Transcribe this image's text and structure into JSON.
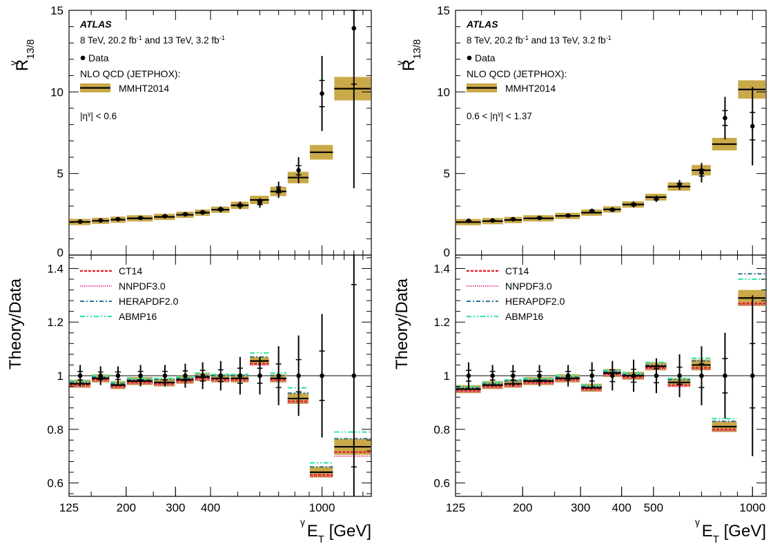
{
  "chart_data": [
    {
      "type": "scatter",
      "panel": "left",
      "ylabel_top": "R",
      "ylabel_top_sup": "γ",
      "ylabel_top_sub": "13/8",
      "ylabel_bottom": "Theory/Data",
      "xlabel": "E",
      "xlabel_sup": "γ",
      "xlabel_sub": "T",
      "xlabel_unit": "[GeV]",
      "x_scale": "log",
      "xlim": [
        125,
        1500
      ],
      "ylim_top": [
        0,
        15
      ],
      "ylim_bottom": [
        0.55,
        1.45
      ],
      "x_ticks": [
        125,
        200,
        300,
        400,
        1000
      ],
      "y_ticks_top": [
        0,
        5,
        10,
        15
      ],
      "y_ticks_bottom": [
        0.6,
        0.8,
        1,
        1.2,
        1.4
      ],
      "annotations": {
        "experiment": "ATLAS",
        "lumi_a": "8 TeV, 20.2 fb",
        "lumi_a_sup": "-1",
        "lumi_b": " and 13 TeV, 3.2 fb",
        "lumi_b_sup": "-1",
        "region_pre": "|η",
        "region_sup": "γ",
        "region_post": "| < 0.6"
      },
      "legend_top": {
        "data": "Data",
        "nlo": "NLO QCD (JETPHOX):",
        "pdf": "MMHT2014"
      },
      "legend_bottom": [
        "CT14",
        "NNPDF3.0",
        "HERAPDF2.0",
        "ABMP16"
      ],
      "bins": [
        [
          125,
          150
        ],
        [
          150,
          175
        ],
        [
          175,
          200
        ],
        [
          200,
          250
        ],
        [
          250,
          300
        ],
        [
          300,
          350
        ],
        [
          350,
          400
        ],
        [
          400,
          470
        ],
        [
          470,
          550
        ],
        [
          550,
          650
        ],
        [
          650,
          750
        ],
        [
          750,
          900
        ],
        [
          900,
          1100
        ],
        [
          1100,
          1500
        ]
      ],
      "data_x": [
        137,
        162,
        187,
        225,
        275,
        325,
        375,
        435,
        510,
        600,
        700,
        825,
        1000,
        1300
      ],
      "data_y": [
        2.05,
        2.12,
        2.2,
        2.28,
        2.38,
        2.5,
        2.62,
        2.8,
        3.05,
        3.2,
        4.0,
        5.2,
        9.9,
        13.9
      ],
      "data_err": [
        0.06,
        0.07,
        0.08,
        0.09,
        0.11,
        0.13,
        0.15,
        0.18,
        0.23,
        0.3,
        0.5,
        0.8,
        2.3,
        9.8
      ],
      "theory_mmht": [
        2.03,
        2.1,
        2.17,
        2.25,
        2.34,
        2.47,
        2.6,
        2.78,
        3.05,
        3.38,
        3.9,
        4.75,
        6.3,
        10.2
      ],
      "theory_band": [
        0.06,
        0.06,
        0.07,
        0.08,
        0.08,
        0.09,
        0.1,
        0.12,
        0.14,
        0.16,
        0.18,
        0.22,
        0.28,
        0.45
      ],
      "ratio_mmht": [
        0.97,
        0.99,
        0.965,
        0.98,
        0.975,
        0.985,
        0.995,
        0.99,
        0.99,
        1.055,
        0.99,
        0.915,
        0.64,
        0.735
      ],
      "ratio_band": [
        0.015,
        0.015,
        0.015,
        0.015,
        0.015,
        0.015,
        0.015,
        0.015,
        0.015,
        0.015,
        0.015,
        0.02,
        0.02,
        0.03
      ],
      "ratio_ct14": [
        0.965,
        0.985,
        0.96,
        0.975,
        0.97,
        0.98,
        0.99,
        0.985,
        0.985,
        1.045,
        0.985,
        0.905,
        0.63,
        0.715
      ],
      "ratio_nnpdf": [
        0.96,
        0.98,
        0.955,
        0.97,
        0.965,
        0.975,
        0.985,
        0.98,
        0.98,
        1.04,
        0.98,
        0.9,
        0.625,
        0.7
      ],
      "ratio_hera": [
        0.975,
        0.995,
        0.97,
        0.985,
        0.985,
        0.99,
        1.0,
        1.0,
        1.0,
        1.07,
        1.0,
        0.935,
        0.66,
        0.765
      ],
      "ratio_abmp": [
        0.98,
        1.0,
        0.975,
        0.99,
        0.99,
        0.995,
        1.01,
        1.005,
        1.005,
        1.085,
        1.01,
        0.955,
        0.675,
        0.79
      ],
      "ratio_data_err": [
        0.04,
        0.035,
        0.035,
        0.04,
        0.04,
        0.045,
        0.05,
        0.055,
        0.07,
        0.07,
        0.11,
        0.15,
        0.23,
        0.85
      ]
    },
    {
      "type": "scatter",
      "panel": "right",
      "ylabel_top": "R",
      "ylabel_top_sup": "γ",
      "ylabel_top_sub": "13/8",
      "ylabel_bottom": "Theory/Data",
      "xlabel": "E",
      "xlabel_sup": "γ",
      "xlabel_sub": "T",
      "xlabel_unit": "[GeV]",
      "x_scale": "log",
      "xlim": [
        125,
        1100
      ],
      "ylim_top": [
        0,
        15
      ],
      "ylim_bottom": [
        0.55,
        1.45
      ],
      "x_ticks": [
        125,
        200,
        300,
        400,
        500,
        1000
      ],
      "y_ticks_top": [
        0,
        5,
        10,
        15
      ],
      "y_ticks_bottom": [
        0.6,
        0.8,
        1,
        1.2,
        1.4
      ],
      "annotations": {
        "experiment": "ATLAS",
        "lumi_a": "8 TeV, 20.2 fb",
        "lumi_a_sup": "-1",
        "lumi_b": " and 13 TeV, 3.2 fb",
        "lumi_b_sup": "-1",
        "region_pre": "0.6 < |η",
        "region_sup": "γ",
        "region_post": "| < 1.37"
      },
      "legend_top": {
        "data": "Data",
        "nlo": "NLO QCD (JETPHOX):",
        "pdf": "MMHT2014"
      },
      "legend_bottom": [
        "CT14",
        "NNPDF3.0",
        "HERAPDF2.0",
        "ABMP16"
      ],
      "bins": [
        [
          125,
          150
        ],
        [
          150,
          175
        ],
        [
          175,
          200
        ],
        [
          200,
          250
        ],
        [
          250,
          300
        ],
        [
          300,
          350
        ],
        [
          350,
          400
        ],
        [
          400,
          470
        ],
        [
          470,
          550
        ],
        [
          550,
          650
        ],
        [
          650,
          750
        ],
        [
          750,
          900
        ],
        [
          900,
          1100
        ]
      ],
      "data_x": [
        137,
        162,
        187,
        225,
        275,
        325,
        375,
        435,
        510,
        600,
        700,
        825,
        1000
      ],
      "data_y": [
        2.1,
        2.12,
        2.2,
        2.28,
        2.42,
        2.7,
        2.78,
        3.1,
        3.45,
        4.3,
        5.05,
        8.4,
        7.9
      ],
      "data_err": [
        0.06,
        0.07,
        0.08,
        0.1,
        0.12,
        0.14,
        0.15,
        0.18,
        0.2,
        0.3,
        0.6,
        1.3,
        2.4
      ],
      "theory_mmht": [
        2.02,
        2.08,
        2.15,
        2.25,
        2.4,
        2.6,
        2.8,
        3.1,
        3.55,
        4.2,
        5.2,
        6.8,
        10.15
      ],
      "theory_band": [
        0.06,
        0.06,
        0.07,
        0.08,
        0.08,
        0.09,
        0.1,
        0.11,
        0.13,
        0.16,
        0.2,
        0.24,
        0.35
      ],
      "ratio_mmht": [
        0.95,
        0.965,
        0.97,
        0.98,
        0.99,
        0.955,
        1.01,
        1.0,
        1.035,
        0.975,
        1.04,
        0.81,
        1.29
      ],
      "ratio_band": [
        0.015,
        0.015,
        0.015,
        0.015,
        0.015,
        0.015,
        0.015,
        0.015,
        0.015,
        0.015,
        0.02,
        0.02,
        0.03
      ],
      "ratio_ct14": [
        0.945,
        0.96,
        0.965,
        0.975,
        0.985,
        0.95,
        1.005,
        0.995,
        1.03,
        0.965,
        1.03,
        0.8,
        1.27
      ],
      "ratio_nnpdf": [
        0.94,
        0.955,
        0.96,
        0.97,
        0.98,
        0.945,
        1.0,
        0.99,
        1.025,
        0.96,
        1.025,
        0.795,
        1.265
      ],
      "ratio_hera": [
        0.955,
        0.97,
        0.98,
        0.985,
        0.995,
        0.96,
        1.015,
        1.005,
        1.04,
        0.985,
        1.055,
        0.83,
        1.38
      ],
      "ratio_abmp": [
        0.96,
        0.975,
        0.985,
        0.99,
        1.0,
        0.965,
        1.02,
        1.01,
        1.05,
        0.99,
        1.065,
        0.84,
        1.36
      ],
      "ratio_data_err": [
        0.05,
        0.04,
        0.04,
        0.04,
        0.04,
        0.05,
        0.055,
        0.06,
        0.065,
        0.08,
        0.11,
        0.16,
        0.3
      ]
    }
  ],
  "style": {
    "band_color": "#c9a94a",
    "data_color": "#000000",
    "ct14_color": "#e8202f",
    "nnpdf_color": "#e0308a",
    "hera_color": "#2e6e8e",
    "abmp_color": "#33e8a0"
  }
}
